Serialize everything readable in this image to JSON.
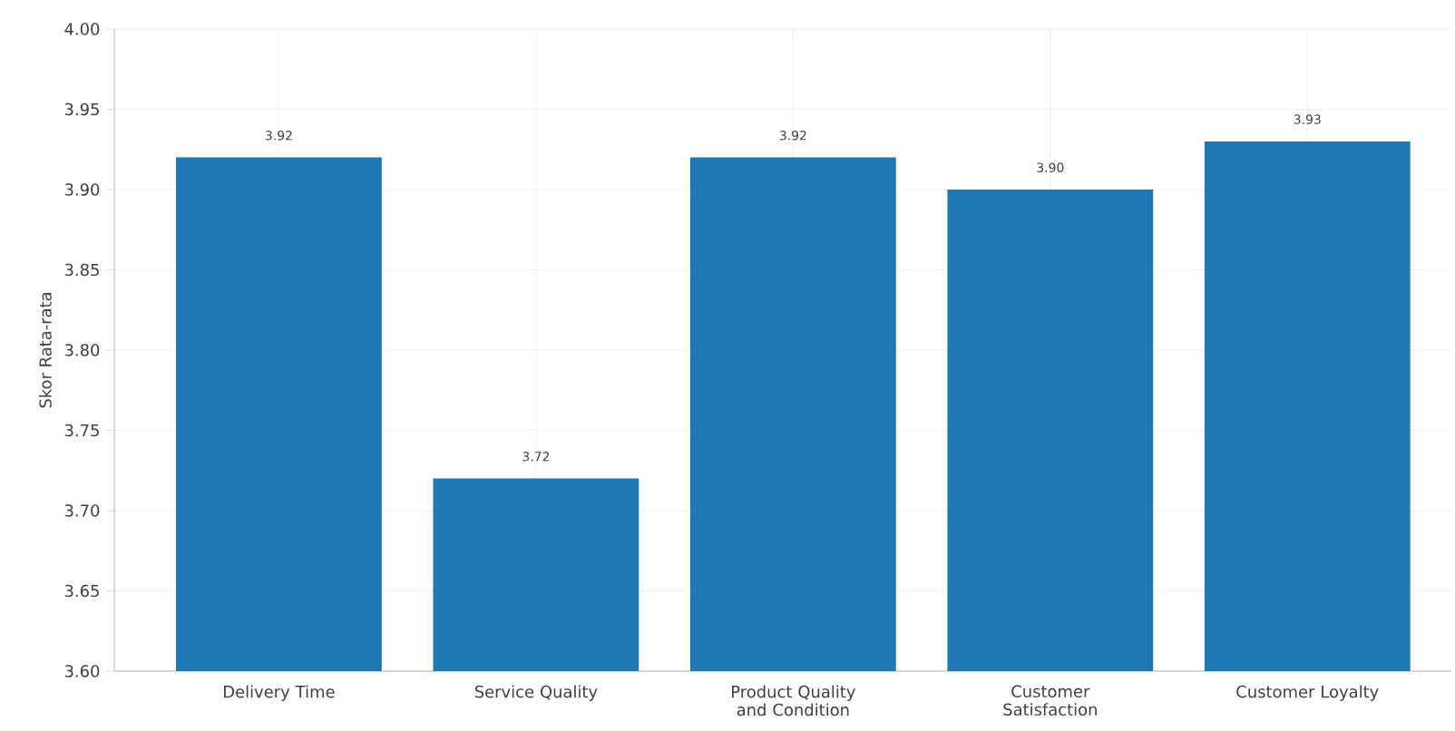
{
  "chart_data": {
    "type": "bar",
    "categories": [
      "Delivery Time",
      "Service Quality",
      "Product Quality and Condition",
      "Customer Satisfaction",
      "Customer Loyalty"
    ],
    "values": [
      3.92,
      3.72,
      3.92,
      3.9,
      3.93
    ],
    "color": "#1f77b4",
    "ylabel": "Skor Rata-rata",
    "ylim": [
      3.6,
      4.0
    ],
    "yticks": [
      "3.60",
      "3.65",
      "3.70",
      "3.75",
      "3.80",
      "3.85",
      "3.90",
      "3.95",
      "4.00"
    ],
    "grid": true,
    "value_labels": [
      "3.92",
      "3.72",
      "3.92",
      "3.90",
      "3.93"
    ]
  }
}
